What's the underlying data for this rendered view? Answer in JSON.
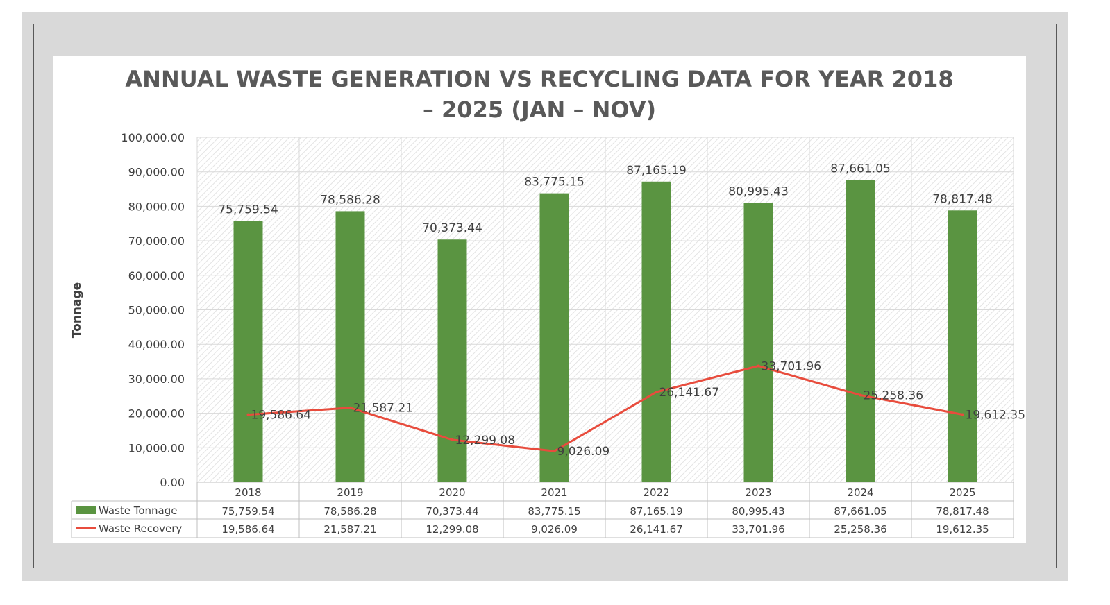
{
  "chart_data": {
    "type": "bar",
    "title": "ANNUAL WASTE GENERATION VS RECYCLING DATA FOR YEAR 2018 – 2025 (JAN – NOV)",
    "title_lines": [
      "ANNUAL WASTE GENERATION VS RECYCLING DATA FOR YEAR 2018",
      "– 2025 (JAN – NOV)"
    ],
    "ylabel": "Tonnage",
    "xlabel": "",
    "ylim": [
      0,
      100000
    ],
    "ytick_labels": [
      "0.00",
      "10,000.00",
      "20,000.00",
      "30,000.00",
      "40,000.00",
      "50,000.00",
      "60,000.00",
      "70,000.00",
      "80,000.00",
      "90,000.00",
      "100,000.00"
    ],
    "categories": [
      "2018",
      "2019",
      "2020",
      "2021",
      "2022",
      "2023",
      "2024",
      "2025"
    ],
    "grid": true,
    "legend": "data-table-left",
    "series": [
      {
        "name": "Waste Tonnage",
        "type": "bar",
        "color": "#5a9441",
        "values": [
          75759.54,
          78586.28,
          70373.44,
          83775.15,
          87165.19,
          80995.43,
          87661.05,
          78817.48
        ],
        "labels": [
          "75,759.54",
          "78,586.28",
          "70,373.44",
          "83,775.15",
          "87,165.19",
          "80,995.43",
          "87,661.05",
          "78,817.48"
        ]
      },
      {
        "name": "Waste Recovery",
        "type": "line",
        "color": "#e84c3d",
        "values": [
          19586.64,
          21587.21,
          12299.08,
          9026.09,
          26141.67,
          33701.96,
          25258.36,
          19612.35
        ],
        "labels": [
          "19,586.64",
          "21,587.21",
          "12,299.08",
          "9,026.09",
          "26,141.67",
          "33,701.96",
          "25,258.36",
          "19,612.35"
        ]
      }
    ]
  }
}
